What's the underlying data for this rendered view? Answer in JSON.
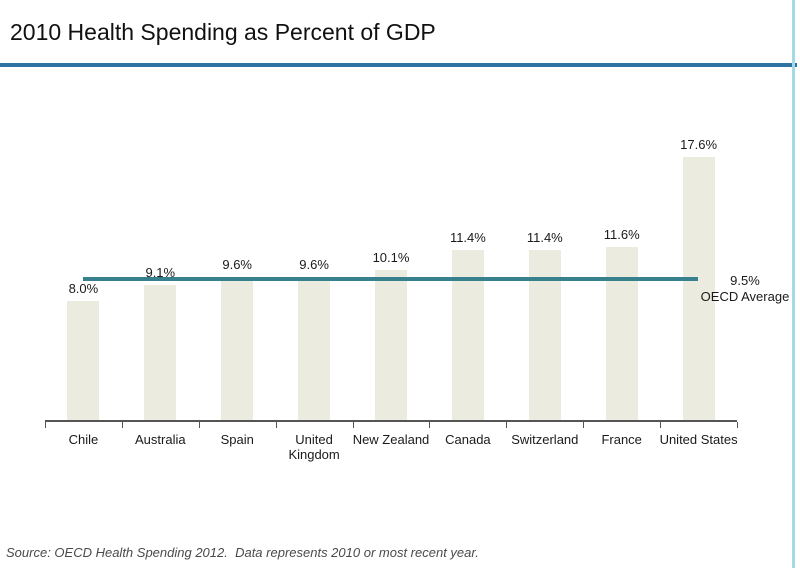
{
  "title": "2010 Health Spending as Percent of GDP",
  "source": "Source: OECD Health Spending 2012.  Data represents 2010 or most recent year.",
  "chart_data": {
    "type": "bar",
    "title": "2010 Health Spending as Percent of GDP",
    "categories": [
      "Chile",
      "Australia",
      "Spain",
      "United Kingdom",
      "New Zealand",
      "Canada",
      "Switzerland",
      "France",
      "United States"
    ],
    "values": [
      8.0,
      9.1,
      9.6,
      9.6,
      10.1,
      11.4,
      11.4,
      11.6,
      17.6
    ],
    "value_labels": [
      "8.0%",
      "9.1%",
      "9.6%",
      "9.6%",
      "10.1%",
      "11.4%",
      "11.4%",
      "11.6%",
      "17.6%"
    ],
    "xlabel": "",
    "ylabel": "",
    "ylim": [
      0,
      18.5
    ],
    "grid": false,
    "y_axis_shown": false,
    "legend": "none",
    "reference_line": {
      "value": 9.5,
      "label": "9.5%",
      "caption": "OECD Average"
    }
  },
  "colors": {
    "bar_fill": "#ECEBE0",
    "reference_line": "#37808E",
    "title_rule": "#2E73A4",
    "axis": "#555555",
    "right_border": "#A6D9E8",
    "text": "#1A1A1A",
    "source_text": "#4A4A4A"
  }
}
